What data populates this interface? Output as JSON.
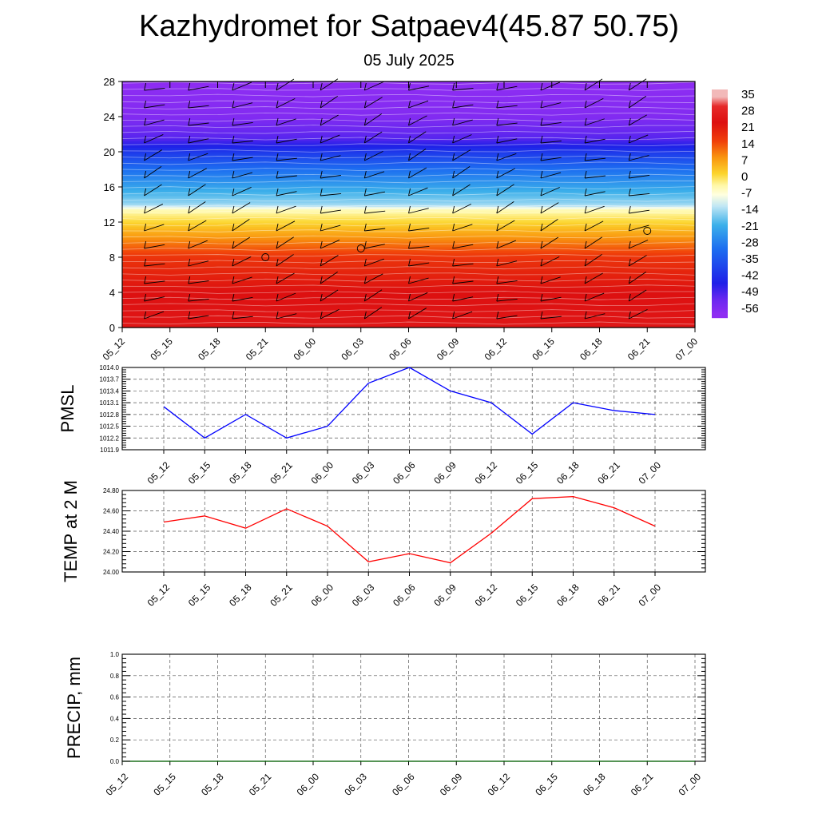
{
  "title": "Kazhydromet for Satpaev4(45.87 50.75)",
  "subtitle": "05 July 2025",
  "chart_data": [
    {
      "type": "heatmap",
      "x_categories": [
        "05_12",
        "05_15",
        "05_18",
        "05_21",
        "06_00",
        "06_03",
        "06_06",
        "06_09",
        "06_12",
        "06_15",
        "06_18",
        "06_21",
        "07_00"
      ],
      "y_ticks": [
        "0",
        "4",
        "8",
        "12",
        "16",
        "20",
        "24",
        "28"
      ],
      "ylim": [
        0,
        28
      ],
      "colorbar": {
        "labels": [
          "35",
          "28",
          "21",
          "14",
          "7",
          "0",
          "-7",
          "-14",
          "-21",
          "-28",
          "-35",
          "-42",
          "-49",
          "-56"
        ],
        "stops": [
          {
            "v": 35,
            "color": "#f2b9b9"
          },
          {
            "v": 31,
            "color": "#e62a2a"
          },
          {
            "v": 24,
            "color": "#dd1010"
          },
          {
            "v": 16,
            "color": "#f03f0a"
          },
          {
            "v": 9,
            "color": "#f9950f"
          },
          {
            "v": 2,
            "color": "#fcd52d"
          },
          {
            "v": -3,
            "color": "#fff8a8"
          },
          {
            "v": -7,
            "color": "#ffffe0"
          },
          {
            "v": -12,
            "color": "#bfe6f4"
          },
          {
            "v": -20,
            "color": "#3cb0ea"
          },
          {
            "v": -30,
            "color": "#1d6ff0"
          },
          {
            "v": -45,
            "color": "#1f1fe8"
          },
          {
            "v": -52,
            "color": "#6a28f0"
          },
          {
            "v": -58,
            "color": "#8e2df2"
          }
        ]
      },
      "temperature_profile": [
        {
          "h": 0,
          "t": 26
        },
        {
          "h": 4,
          "t": 24
        },
        {
          "h": 8,
          "t": 18
        },
        {
          "h": 10,
          "t": 10
        },
        {
          "h": 12,
          "t": 2
        },
        {
          "h": 13.4,
          "t": -4
        },
        {
          "h": 14,
          "t": -14
        },
        {
          "h": 16,
          "t": -22
        },
        {
          "h": 18,
          "t": -30
        },
        {
          "h": 20,
          "t": -40
        },
        {
          "h": 21.5,
          "t": -50
        },
        {
          "h": 23,
          "t": -53
        },
        {
          "h": 24,
          "t": -56
        },
        {
          "h": 28,
          "t": -58
        }
      ],
      "wind_barb_rows": [
        1,
        3,
        5,
        7,
        9,
        11,
        13,
        15,
        17,
        19,
        21,
        23,
        25,
        27
      ],
      "calm_markers": [
        {
          "x": "05_21",
          "h": 8
        },
        {
          "x": "06_03",
          "h": 9
        },
        {
          "x": "06_21",
          "h": 11
        }
      ]
    },
    {
      "type": "line",
      "ylabel": "PMSL",
      "x_categories": [
        "05_12",
        "05_15",
        "05_18",
        "05_21",
        "06_00",
        "06_03",
        "06_06",
        "06_09",
        "06_12",
        "06_15",
        "06_18",
        "06_21",
        "07_00"
      ],
      "y_ticks": [
        "1011.9",
        "1012.2",
        "1012.5",
        "1012.8",
        "1013.1",
        "1013.4",
        "1013.7",
        "1014.0"
      ],
      "ylim": [
        1011.9,
        1014.0
      ],
      "series": [
        {
          "color": "#0000ff",
          "values": [
            1013.0,
            1012.2,
            1012.8,
            1012.2,
            1012.5,
            1013.6,
            1014.0,
            1013.4,
            1013.1,
            1012.3,
            1013.1,
            1012.9,
            1012.8
          ]
        }
      ]
    },
    {
      "type": "line",
      "ylabel": "TEMP at 2 M",
      "x_categories": [
        "05_12",
        "05_15",
        "05_18",
        "05_21",
        "06_00",
        "06_03",
        "06_06",
        "06_09",
        "06_12",
        "06_15",
        "06_18",
        "06_21",
        "07_00"
      ],
      "y_ticks": [
        "24.00",
        "24.20",
        "24.40",
        "24.60",
        "24.80"
      ],
      "ylim": [
        24.0,
        24.8
      ],
      "series": [
        {
          "color": "#ff0000",
          "values": [
            24.49,
            24.55,
            24.43,
            24.62,
            24.45,
            24.1,
            24.18,
            24.09,
            24.38,
            24.72,
            24.74,
            24.63,
            24.45
          ]
        }
      ]
    },
    {
      "type": "line",
      "ylabel": "PRECIP, mm",
      "x_categories": [
        "05_12",
        "05_15",
        "05_18",
        "05_21",
        "06_00",
        "06_03",
        "06_06",
        "06_09",
        "06_12",
        "06_15",
        "06_18",
        "06_21",
        "07_00"
      ],
      "y_ticks": [
        "0.0",
        "0.2",
        "0.4",
        "0.6",
        "0.8",
        "1.0"
      ],
      "ylim": [
        0,
        1.0
      ],
      "series": [
        {
          "color": "#006400",
          "values": [
            0,
            0,
            0,
            0,
            0,
            0,
            0,
            0,
            0,
            0,
            0,
            0,
            0
          ]
        }
      ]
    }
  ]
}
